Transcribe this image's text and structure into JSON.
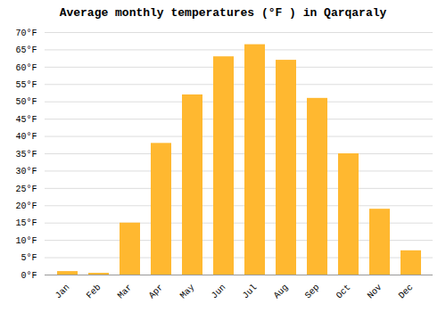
{
  "chart_data": {
    "type": "bar",
    "title": "Average monthly temperatures (°F ) in Qarqaraly",
    "categories": [
      "Jan",
      "Feb",
      "Mar",
      "Apr",
      "May",
      "Jun",
      "Jul",
      "Aug",
      "Sep",
      "Oct",
      "Nov",
      "Dec"
    ],
    "values": [
      1.0,
      0.5,
      15.0,
      38.0,
      52.0,
      63.0,
      66.5,
      62.0,
      51.0,
      35.0,
      19.0,
      7.0
    ],
    "color": "#FFB830",
    "ylim": [
      0,
      70
    ],
    "yticks": [
      {
        "value": 0,
        "label": "0°F"
      },
      {
        "value": 5,
        "label": "5°F"
      },
      {
        "value": 10,
        "label": "10°F"
      },
      {
        "value": 15,
        "label": "15°F"
      },
      {
        "value": 20,
        "label": "20°F"
      },
      {
        "value": 25,
        "label": "25°F"
      },
      {
        "value": 30,
        "label": "30°F"
      },
      {
        "value": 35,
        "label": "35°F"
      },
      {
        "value": 40,
        "label": "40°F"
      },
      {
        "value": 45,
        "label": "45°F"
      },
      {
        "value": 50,
        "label": "50°F"
      },
      {
        "value": 55,
        "label": "55°F"
      },
      {
        "value": 60,
        "label": "60°F"
      },
      {
        "value": 65,
        "label": "65°F"
      },
      {
        "value": 70,
        "label": "70°F"
      }
    ],
    "grid": true
  }
}
